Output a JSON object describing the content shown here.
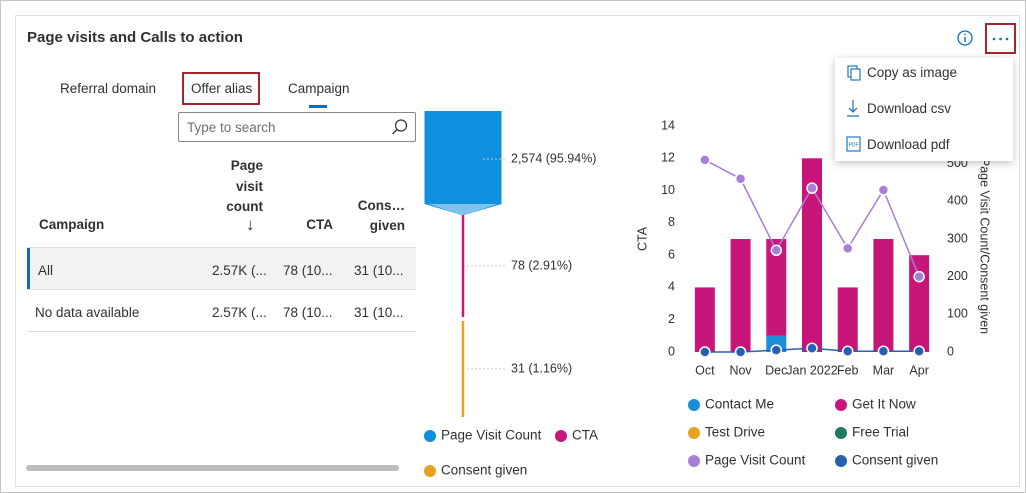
{
  "header": {
    "title": "Page visits and Calls to action"
  },
  "tabs": [
    "Referral domain",
    "Offer alias",
    "Campaign"
  ],
  "search": {
    "placeholder": "Type to search"
  },
  "table": {
    "columns": [
      "Campaign",
      "Page visit count",
      "CTA",
      "Cons… given"
    ],
    "sort_indicator": "↓",
    "rows": [
      [
        "All",
        "2.57K (...",
        "78 (10...",
        "31 (10..."
      ],
      [
        "No data available",
        "2.57K (...",
        "78 (10...",
        "31 (10..."
      ]
    ]
  },
  "menu": [
    "Copy as image",
    "Download csv",
    "Download pdf"
  ],
  "chart_data": [
    {
      "type": "funnel",
      "categories": [
        "Page Visit Count",
        "CTA",
        "Consent given"
      ],
      "values": [
        2574,
        78,
        31
      ],
      "value_labels": [
        "2,574 (95.94%)",
        "78 (2.91%)",
        "31 (1.16%)"
      ],
      "colors": [
        "#0f8fe0",
        "#c8157a",
        "#e8a025"
      ]
    },
    {
      "type": "bar",
      "stacked": true,
      "y_label": "CTA",
      "y2_label": "Page Visit Count/Consent given",
      "categories": [
        "Oct",
        "Nov",
        "Dec",
        "Jan 2022",
        "Feb",
        "Mar",
        "Apr"
      ],
      "ylim": [
        0,
        14
      ],
      "yticks": [
        0,
        2,
        4,
        6,
        8,
        10,
        12,
        14
      ],
      "y2lim": [
        0,
        600
      ],
      "y2ticks": [
        0,
        100,
        200,
        300,
        400,
        500
      ],
      "grid": false,
      "series": [
        {
          "name": "Contact Me",
          "color": "#1a8fd8",
          "values": [
            0,
            0,
            1,
            0,
            0,
            0,
            0
          ]
        },
        {
          "name": "Get It Now",
          "color": "#c8157a",
          "values": [
            4,
            7,
            6,
            12,
            4,
            7,
            6
          ]
        },
        {
          "name": "Test Drive",
          "color": "#e8a025",
          "values": [
            0,
            0,
            0,
            0,
            0,
            0,
            0
          ]
        },
        {
          "name": "Free Trial",
          "color": "#1e7a5f",
          "values": [
            0,
            0,
            0,
            0,
            0,
            0,
            0
          ]
        },
        {
          "name": "Page Visit Count",
          "color": "#a77fd6",
          "type": "line",
          "axis": "y2",
          "values": [
            510,
            460,
            270,
            435,
            275,
            430,
            200
          ]
        },
        {
          "name": "Consent given",
          "color": "#2a5fb0",
          "type": "line",
          "axis": "y2",
          "values": [
            0,
            0,
            5,
            10,
            2,
            2,
            2
          ]
        }
      ]
    }
  ]
}
